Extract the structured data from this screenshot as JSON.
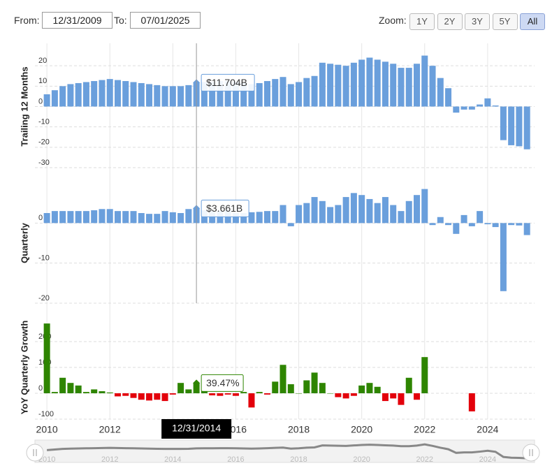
{
  "controls": {
    "from_label": "From:",
    "from_value": "12/31/2009",
    "to_label": "To:",
    "to_value": "07/01/2025",
    "zoom_label": "Zoom:",
    "zoom_buttons": [
      "1Y",
      "2Y",
      "3Y",
      "5Y",
      "All"
    ],
    "zoom_active": "All"
  },
  "chart_data": {
    "type": "bar",
    "x": [
      2010,
      2010.25,
      2010.5,
      2010.75,
      2011,
      2011.25,
      2011.5,
      2011.75,
      2012,
      2012.25,
      2012.5,
      2012.75,
      2013,
      2013.25,
      2013.5,
      2013.75,
      2014,
      2014.25,
      2014.5,
      2014.75,
      2015,
      2015.25,
      2015.5,
      2015.75,
      2016,
      2016.25,
      2016.5,
      2016.75,
      2017,
      2017.25,
      2017.5,
      2017.75,
      2018,
      2018.25,
      2018.5,
      2018.75,
      2019,
      2019.25,
      2019.5,
      2019.75,
      2020,
      2020.25,
      2020.5,
      2020.75,
      2021,
      2021.25,
      2021.5,
      2021.75,
      2022,
      2022.25,
      2022.5,
      2022.75,
      2023,
      2023.25,
      2023.5,
      2023.75,
      2024,
      2024.25,
      2024.5,
      2024.75,
      2025,
      2025.25
    ],
    "xlim": [
      2009.62,
      2025.49
    ],
    "xticks": [
      2010,
      2012,
      2014,
      2016,
      2018,
      2020,
      2022,
      2024
    ],
    "grid": true,
    "crosshair_label": "12/31/2014",
    "panels": [
      {
        "ylabel": "Trailing 12 Months",
        "color": "#6a9fdc",
        "ylim": [
          -30,
          30
        ],
        "yticks": [
          -30,
          -20,
          -10,
          0,
          10,
          20
        ],
        "values": [
          6,
          8,
          10,
          11,
          11.5,
          12,
          12.5,
          13,
          13.5,
          13,
          12.5,
          12,
          11.5,
          11,
          10.5,
          10,
          10,
          10,
          10.5,
          11.704,
          12,
          12,
          12.5,
          12.5,
          12,
          11.5,
          11,
          11.5,
          12.5,
          13.5,
          14.5,
          11,
          12,
          14,
          15,
          21.5,
          21,
          20.5,
          20,
          21.5,
          23,
          24,
          23,
          22,
          21,
          19,
          19,
          21,
          25,
          20,
          14,
          9,
          -3,
          -1.5,
          -1.5,
          1,
          4,
          0.5,
          -16.5,
          -19,
          -19.5,
          -21
        ],
        "value_labels": [
          null,
          null,
          null,
          null,
          null,
          null,
          null,
          null,
          null,
          null,
          null,
          null,
          null,
          null,
          null,
          null,
          null,
          null,
          null,
          "$11.704B",
          null,
          null,
          null,
          null,
          null,
          null,
          null,
          null,
          null,
          null,
          null,
          null,
          null,
          null,
          null,
          null,
          null,
          null,
          null,
          null,
          null,
          null,
          null,
          null,
          null,
          null,
          null,
          null,
          null,
          null,
          null,
          null,
          null,
          null,
          null,
          null,
          null,
          null,
          null,
          null,
          null,
          null
        ]
      },
      {
        "ylabel": "Quarterly",
        "color": "#6a9fdc",
        "ylim": [
          -20,
          10
        ],
        "yticks": [
          -20,
          -10,
          0
        ],
        "values": [
          2.5,
          3,
          3,
          3,
          3,
          3,
          3.2,
          3.5,
          3.5,
          3,
          3,
          3,
          2.5,
          2.3,
          2.3,
          3,
          2.7,
          2.5,
          3.5,
          3.661,
          3.2,
          3,
          3,
          3.2,
          2.5,
          2.5,
          2.7,
          2.8,
          3,
          3,
          4.5,
          -0.8,
          4.5,
          5,
          6.5,
          5.5,
          4,
          4.5,
          6.5,
          7.5,
          7,
          6,
          5,
          6.5,
          4.5,
          3,
          5.5,
          7,
          8.5,
          -0.5,
          1.5,
          -0.5,
          -2.7,
          2,
          -0.8,
          3,
          -0.3,
          -1,
          -17,
          -0.5,
          -0.6,
          -3
        ],
        "value_labels": [
          null,
          null,
          null,
          null,
          null,
          null,
          null,
          null,
          null,
          null,
          null,
          null,
          null,
          null,
          null,
          null,
          null,
          null,
          null,
          "$3.661B",
          null,
          null,
          null,
          null,
          null,
          null,
          null,
          null,
          null,
          null,
          null,
          null,
          null,
          null,
          null,
          null,
          null,
          null,
          null,
          null,
          null,
          null,
          null,
          null,
          null,
          null,
          null,
          null,
          null,
          null,
          null,
          null,
          null,
          null,
          null,
          null,
          null,
          null,
          null,
          null,
          null,
          null
        ]
      },
      {
        "ylabel": "YoY Quarterly Growth",
        "positive_color": "#2e8500",
        "negative_color": "#e3000b",
        "ylim": [
          -100,
          300
        ],
        "yticks": [
          -100,
          0,
          100,
          200
        ],
        "values": [
          270,
          5,
          60,
          40,
          30,
          5,
          15,
          8,
          3,
          -12,
          -10,
          -18,
          -25,
          -28,
          -25,
          -30,
          -5,
          40,
          15,
          39.47,
          10,
          -8,
          -10,
          -5,
          -10,
          5,
          -55,
          5,
          -5,
          45,
          110,
          35,
          0,
          50,
          80,
          40,
          0,
          -15,
          -20,
          -10,
          30,
          40,
          25,
          -30,
          -20,
          -45,
          60,
          -25,
          140,
          null,
          null,
          null,
          null,
          null,
          -70,
          null,
          null,
          null,
          null,
          null,
          null,
          null
        ],
        "value_labels": [
          null,
          null,
          null,
          null,
          null,
          null,
          null,
          null,
          null,
          null,
          null,
          null,
          null,
          null,
          null,
          null,
          null,
          null,
          null,
          "39.47%",
          null,
          null,
          null,
          null,
          null,
          null,
          null,
          null,
          null,
          null,
          null,
          null,
          null,
          null,
          null,
          null,
          null,
          null,
          null,
          null,
          null,
          null,
          null,
          null,
          null,
          null,
          null,
          null,
          null,
          null,
          null,
          null,
          null,
          null,
          null,
          null,
          null,
          null,
          null,
          null,
          null,
          null
        ]
      }
    ]
  }
}
